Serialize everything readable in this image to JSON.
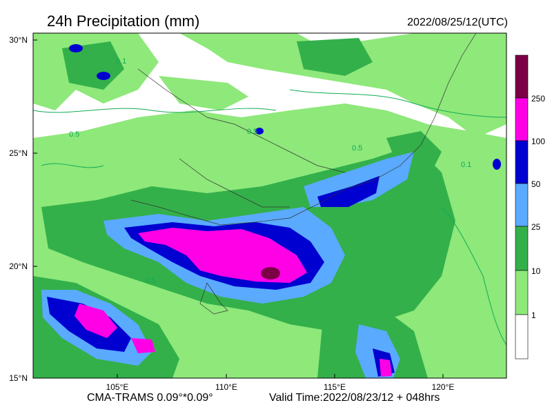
{
  "header": {
    "title": "24h Precipitation (mm)",
    "datetime": "2022/08/25/12(UTC)"
  },
  "axes": {
    "lat_ticks": [
      "30°N",
      "25°N",
      "20°N",
      "15°N"
    ],
    "lon_ticks": [
      "105°E",
      "110°E",
      "115°E",
      "120°E"
    ]
  },
  "footer": {
    "model": "CMA-TRAMS 0.09°*0.09°",
    "valid": "Valid Time:2022/08/23/12 + 048hrs"
  },
  "colorbar": {
    "labels": [
      "250",
      "100",
      "50",
      "25",
      "10",
      "1"
    ],
    "colors": [
      "#7b0045",
      "#ff00e6",
      "#0000d0",
      "#5aaaff",
      "#33b04a",
      "#8ee87a",
      "#ffffff"
    ]
  },
  "contour_labels": [
    "0.5",
    "0.1",
    "0.5",
    "0.5",
    "0.1",
    "0.5"
  ]
}
